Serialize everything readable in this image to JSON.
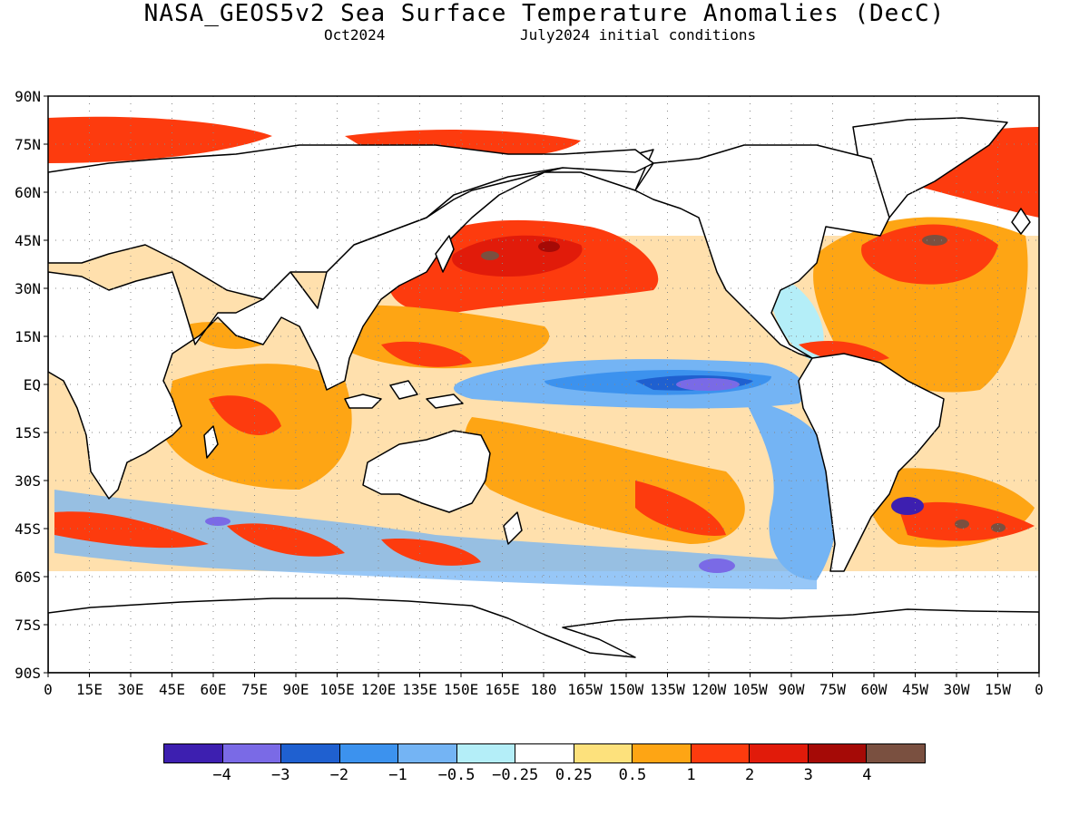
{
  "title": "NASA_GEOS5v2 Sea Surface Temperature Anomalies (DecC)",
  "subtitle_left": "Oct2024",
  "subtitle_right": "July2024 initial conditions",
  "lat_labels": [
    "90N",
    "75N",
    "60N",
    "45N",
    "30N",
    "15N",
    "EQ",
    "15S",
    "30S",
    "45S",
    "60S",
    "75S",
    "90S"
  ],
  "lon_labels": [
    "0",
    "15E",
    "30E",
    "45E",
    "60E",
    "75E",
    "90E",
    "105E",
    "120E",
    "135E",
    "150E",
    "165E",
    "180",
    "165W",
    "150W",
    "135W",
    "120W",
    "105W",
    "90W",
    "75W",
    "60W",
    "45W",
    "30W",
    "15W",
    "0"
  ],
  "legend": {
    "colors": [
      "#3d1fb0",
      "#7a6ae6",
      "#1f60d0",
      "#3c92ee",
      "#74b4f4",
      "#b4eef8",
      "#ffffff",
      "#fde17c",
      "#fea514",
      "#fd3b0e",
      "#e11b0a",
      "#a50a06",
      "#7a5040"
    ],
    "labels": [
      "−4",
      "−3",
      "−2",
      "−1",
      "−0.5",
      "−0.25",
      "0.25",
      "0.5",
      "1",
      "2",
      "3",
      "4"
    ]
  }
}
